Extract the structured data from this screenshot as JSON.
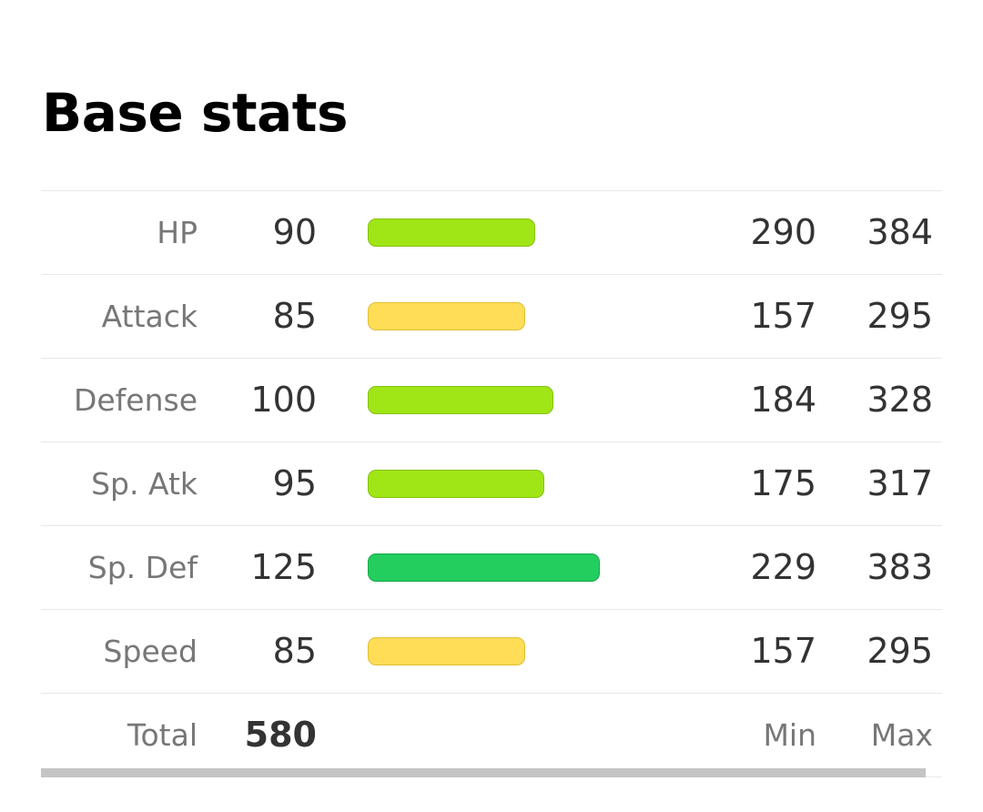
{
  "page": {
    "title": "Base stats"
  },
  "stats": [
    {
      "label": "HP",
      "base": "90",
      "min": "290",
      "max": "384",
      "bar_color": "lime",
      "bar_fraction": 0.353
    },
    {
      "label": "Attack",
      "base": "85",
      "min": "157",
      "max": "295",
      "bar_color": "yellow",
      "bar_fraction": 0.333
    },
    {
      "label": "Defense",
      "base": "100",
      "min": "184",
      "max": "328",
      "bar_color": "lime",
      "bar_fraction": 0.392
    },
    {
      "label": "Sp. Atk",
      "base": "95",
      "min": "175",
      "max": "317",
      "bar_color": "lime",
      "bar_fraction": 0.373
    },
    {
      "label": "Sp. Def",
      "base": "125",
      "min": "229",
      "max": "383",
      "bar_color": "green",
      "bar_fraction": 0.49
    },
    {
      "label": "Speed",
      "base": "85",
      "min": "157",
      "max": "295",
      "bar_color": "yellow",
      "bar_fraction": 0.333
    }
  ],
  "total": {
    "label": "Total",
    "value": "580",
    "min_header": "Min",
    "max_header": "Max"
  },
  "colors": {
    "yellow": "#ffdd57",
    "lime": "#a0e515",
    "green": "#23cd5e"
  }
}
